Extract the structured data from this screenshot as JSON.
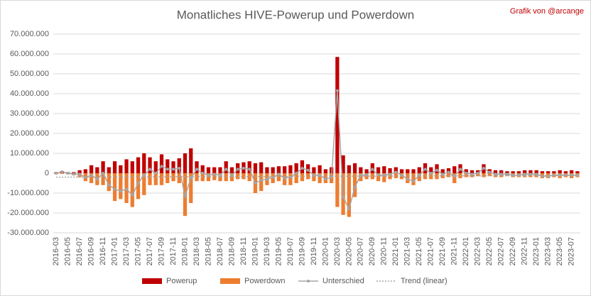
{
  "chart_data": {
    "type": "bar",
    "title": "Monatliches HIVE-Powerup und Powerdown",
    "annotation": "Grafik von @arcange",
    "categories": [
      "2016-03",
      null,
      "2016-05",
      null,
      "2016-07",
      null,
      "2016-09",
      null,
      "2016-11",
      null,
      "2017-01",
      null,
      "2017-03",
      null,
      "2017-05",
      null,
      "2017-07",
      null,
      "2017-09",
      null,
      "2017-11",
      null,
      "2018-01",
      null,
      "2018-03",
      null,
      "2018-05",
      null,
      "2018-07",
      null,
      "2018-09",
      null,
      "2018-11",
      null,
      "2019-01",
      null,
      "2019-03",
      null,
      "2019-05",
      null,
      "2019-07",
      null,
      "2019-09",
      null,
      "2019-11",
      null,
      "2020-01",
      null,
      "2020-03",
      null,
      "2020-05",
      null,
      "2020-07",
      null,
      "2020-09",
      null,
      "2020-11",
      null,
      "2021-01",
      null,
      "2021-03",
      null,
      "2021-05",
      null,
      "2021-07",
      null,
      "2021-09",
      null,
      "2021-11",
      null,
      "2022-01",
      null,
      "2022-03",
      null,
      "2022-05",
      null,
      "2022-07",
      null,
      "2022-09",
      null,
      "2022-11",
      null,
      "2023-01",
      null,
      "2023-03",
      null,
      "2023-05",
      null,
      "2023-07",
      null
    ],
    "series": [
      {
        "name": "Powerup",
        "color": "#c00000",
        "style": "bar",
        "values": [
          500000,
          1000000,
          500000,
          500000,
          1500000,
          2000000,
          4000000,
          3000000,
          6000000,
          3000000,
          6000000,
          4000000,
          7000000,
          6000000,
          8000000,
          10000000,
          8000000,
          6000000,
          9500000,
          7000000,
          6000000,
          7500000,
          10000000,
          12500000,
          6000000,
          4000000,
          3000000,
          3000000,
          3000000,
          6000000,
          3000000,
          5000000,
          5500000,
          6000000,
          5000000,
          5500000,
          3000000,
          3000000,
          3500000,
          3500000,
          4000000,
          5000000,
          6500000,
          4500000,
          3000000,
          4000000,
          2000000,
          3000000,
          58500000,
          9000000,
          4000000,
          5000000,
          3000000,
          2000000,
          5000000,
          3000000,
          3500000,
          2500000,
          3000000,
          2000000,
          2000000,
          2000000,
          3000000,
          5000000,
          3000000,
          4500000,
          2000000,
          2500000,
          3500000,
          4500000,
          2000000,
          1500000,
          1500000,
          4500000,
          2000000,
          1500000,
          1500000,
          1000000,
          1000000,
          1000000,
          1500000,
          1500000,
          1500000,
          1000000,
          1000000,
          1000000,
          1500000,
          1000000,
          1500000,
          1000000
        ]
      },
      {
        "name": "Powerdown",
        "color": "#ed7d31",
        "style": "bar",
        "values": [
          -500000,
          -300000,
          -500000,
          -1000000,
          -2000000,
          -4000000,
          -5000000,
          -6000000,
          -6000000,
          -9000000,
          -14000000,
          -13000000,
          -15000000,
          -17000000,
          -13000000,
          -11000000,
          -6000000,
          -6000000,
          -6000000,
          -5000000,
          -4000000,
          -5000000,
          -21500000,
          -15000000,
          -4000000,
          -4000000,
          -4000000,
          -3500000,
          -4000000,
          -4000000,
          -4000000,
          -3000000,
          -3000000,
          -4000000,
          -10000000,
          -9000000,
          -6000000,
          -5000000,
          -4000000,
          -6000000,
          -6000000,
          -5000000,
          -4000000,
          -3000000,
          -4000000,
          -5000000,
          -5000000,
          -5000000,
          -17000000,
          -21000000,
          -22000000,
          -12000000,
          -4000000,
          -3000000,
          -3000000,
          -4000000,
          -4500000,
          -3000000,
          -2500000,
          -3000000,
          -5000000,
          -6000000,
          -4000000,
          -3000000,
          -3000000,
          -3000000,
          -2500000,
          -2000000,
          -5000000,
          -2500000,
          -2000000,
          -2000000,
          -1500000,
          -2000000,
          -1500000,
          -2000000,
          -2000000,
          -1500000,
          -2000000,
          -2000000,
          -2000000,
          -2000000,
          -2000000,
          -2500000,
          -2500000,
          -2000000,
          -2500000,
          -2000000,
          -2500000,
          -2000000
        ]
      },
      {
        "name": "Unterschied",
        "color": "#a5a5a5",
        "style": "line",
        "markers": true,
        "values": [
          0,
          700000,
          0,
          -500000,
          -500000,
          -2000000,
          -1000000,
          -3000000,
          0,
          -6000000,
          -8000000,
          -9000000,
          -8000000,
          -11000000,
          -5000000,
          -1000000,
          2000000,
          0,
          3500000,
          2000000,
          2000000,
          2500000,
          -11500000,
          -2500000,
          2000000,
          0,
          -1000000,
          -500000,
          -1000000,
          2000000,
          -1000000,
          2000000,
          2500000,
          2000000,
          -5000000,
          -3500000,
          -3000000,
          -2000000,
          -500000,
          -2500000,
          -2000000,
          0,
          2500000,
          1500000,
          -1000000,
          -1000000,
          -3000000,
          -2000000,
          41500000,
          -12000000,
          -18000000,
          -7000000,
          -1000000,
          -1000000,
          2000000,
          -1000000,
          -1000000,
          -500000,
          500000,
          -1000000,
          -3000000,
          -4000000,
          -1000000,
          2000000,
          0,
          1500000,
          -500000,
          500000,
          -1500000,
          2000000,
          0,
          -500000,
          0,
          2500000,
          500000,
          -500000,
          -500000,
          -500000,
          -1000000,
          -1000000,
          -500000,
          -500000,
          -500000,
          -1500000,
          -1500000,
          -1000000,
          -1000000,
          -1000000,
          -1000000,
          -1000000
        ]
      },
      {
        "name": "Trend (linear)",
        "color": "#a5a5a5",
        "style": "line",
        "dotted": true,
        "values": [
          -2000000,
          -1990000,
          -1980000,
          -1970000,
          -1960000,
          -1950000,
          -1940000,
          -1930000,
          -1920000,
          -1910000,
          -1900000,
          -1890000,
          -1880000,
          -1870000,
          -1860000,
          -1850000,
          -1840000,
          -1830000,
          -1820000,
          -1810000,
          -1800000,
          -1790000,
          -1780000,
          -1770000,
          -1760000,
          -1750000,
          -1740000,
          -1730000,
          -1720000,
          -1710000,
          -1700000,
          -1690000,
          -1680000,
          -1670000,
          -1660000,
          -1650000,
          -1640000,
          -1630000,
          -1620000,
          -1610000,
          -1600000,
          -1590000,
          -1580000,
          -1570000,
          -1560000,
          -1550000,
          -1540000,
          -1530000,
          -1520000,
          -1510000,
          -1500000,
          -1490000,
          -1480000,
          -1470000,
          -1460000,
          -1450000,
          -1440000,
          -1430000,
          -1420000,
          -1410000,
          -1400000,
          -1390000,
          -1380000,
          -1370000,
          -1360000,
          -1350000,
          -1340000,
          -1330000,
          -1320000,
          -1310000,
          -1300000,
          -1290000,
          -1280000,
          -1270000,
          -1260000,
          -1250000,
          -1240000,
          -1230000,
          -1220000,
          -1210000,
          -1200000,
          -1190000,
          -1180000,
          -1170000,
          -1160000,
          -1150000,
          -1140000,
          -1130000,
          -1120000,
          -1110000
        ]
      }
    ],
    "ylim": [
      -30000000,
      70000000
    ],
    "yticks": [
      {
        "value": -30000000,
        "label": "-30.000.000"
      },
      {
        "value": -20000000,
        "label": "-20.000.000"
      },
      {
        "value": -10000000,
        "label": "-10.000.000"
      },
      0,
      {
        "value": 10000000,
        "label": "10.000.000"
      },
      {
        "value": 20000000,
        "label": "20.000.000"
      },
      {
        "value": 30000000,
        "label": "30.000.000"
      },
      {
        "value": 40000000,
        "label": "40.000.000"
      },
      {
        "value": 50000000,
        "label": "50.000.000"
      },
      {
        "value": 60000000,
        "label": "60.000.000"
      },
      {
        "value": 70000000,
        "label": "70.000.000"
      }
    ],
    "grid": true,
    "legend": "bottom"
  }
}
